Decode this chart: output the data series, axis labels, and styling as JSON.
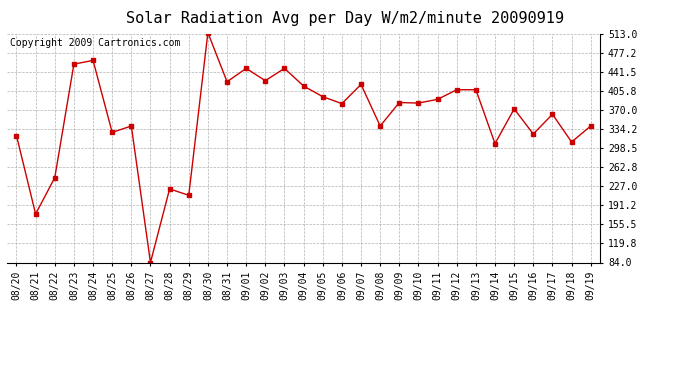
{
  "title": "Solar Radiation Avg per Day W/m2/minute 20090919",
  "copyright": "Copyright 2009 Cartronics.com",
  "dates": [
    "08/20",
    "08/21",
    "08/22",
    "08/23",
    "08/24",
    "08/25",
    "08/26",
    "08/27",
    "08/28",
    "08/29",
    "08/30",
    "08/31",
    "09/01",
    "09/02",
    "09/03",
    "09/04",
    "09/05",
    "09/06",
    "09/07",
    "09/08",
    "09/09",
    "09/10",
    "09/11",
    "09/12",
    "09/13",
    "09/14",
    "09/15",
    "09/16",
    "09/17",
    "09/18",
    "09/19"
  ],
  "values": [
    322,
    175,
    243,
    456,
    463,
    328,
    340,
    84,
    222,
    210,
    515,
    423,
    448,
    425,
    448,
    415,
    395,
    382,
    418,
    340,
    384,
    383,
    390,
    408,
    408,
    307,
    372,
    325,
    362,
    310,
    340
  ],
  "line_color": "#cc0000",
  "marker": "s",
  "marker_size": 3,
  "bg_color": "#ffffff",
  "grid_color": "#aaaaaa",
  "yticks": [
    84.0,
    119.8,
    155.5,
    191.2,
    227.0,
    262.8,
    298.5,
    334.2,
    370.0,
    405.8,
    441.5,
    477.2,
    513.0
  ],
  "ylim": [
    84.0,
    513.0
  ],
  "title_fontsize": 11,
  "copyright_fontsize": 7,
  "tick_fontsize": 7
}
